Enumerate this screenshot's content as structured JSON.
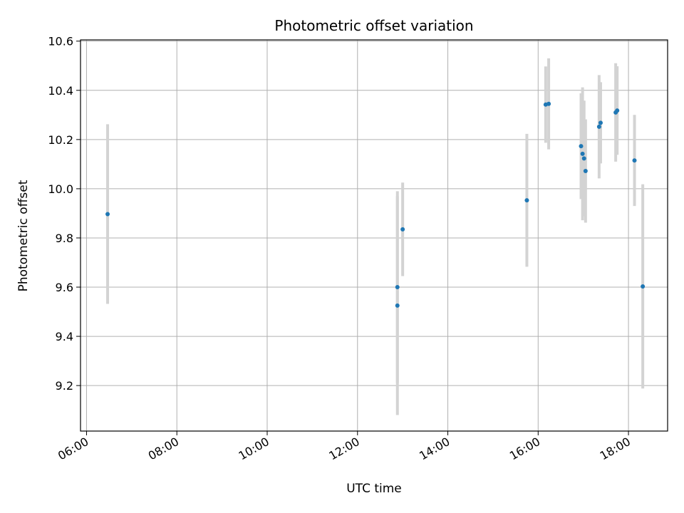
{
  "chart_data": {
    "type": "scatter",
    "title": "Photometric offset variation",
    "xlabel": "UTC time",
    "ylabel": "Photometric offset",
    "xlim": [
      "05:52",
      "18:52"
    ],
    "ylim": [
      9.015,
      10.605
    ],
    "x_ticks": [
      "06:00",
      "08:00",
      "10:00",
      "12:00",
      "14:00",
      "16:00",
      "18:00"
    ],
    "y_ticks": [
      "9.2",
      "9.4",
      "9.6",
      "9.8",
      "10.0",
      "10.2",
      "10.4",
      "10.6"
    ],
    "grid": true,
    "point_color": "#1f77b4",
    "errorbar_color": "#d3d3d3",
    "points": [
      {
        "x": "06:28",
        "y": 9.897,
        "yerr": 0.365
      },
      {
        "x": "12:53",
        "y": 9.6,
        "yerr": 0.39
      },
      {
        "x": "12:53",
        "y": 9.525,
        "yerr": 0.445
      },
      {
        "x": "13:00",
        "y": 9.835,
        "yerr": 0.19
      },
      {
        "x": "15:45",
        "y": 9.953,
        "yerr": 0.27
      },
      {
        "x": "16:10",
        "y": 10.342,
        "yerr": 0.155
      },
      {
        "x": "16:14",
        "y": 10.345,
        "yerr": 0.185
      },
      {
        "x": "16:57",
        "y": 10.173,
        "yerr": 0.215
      },
      {
        "x": "16:59",
        "y": 10.142,
        "yerr": 0.27
      },
      {
        "x": "17:01",
        "y": 10.123,
        "yerr": 0.235
      },
      {
        "x": "17:03",
        "y": 10.072,
        "yerr": 0.21
      },
      {
        "x": "17:21",
        "y": 10.252,
        "yerr": 0.21
      },
      {
        "x": "17:23",
        "y": 10.268,
        "yerr": 0.165
      },
      {
        "x": "17:43",
        "y": 10.31,
        "yerr": 0.2
      },
      {
        "x": "17:45",
        "y": 10.318,
        "yerr": 0.18
      },
      {
        "x": "18:08",
        "y": 10.115,
        "yerr": 0.185
      },
      {
        "x": "18:19",
        "y": 9.603,
        "yerr": 0.415
      }
    ]
  }
}
